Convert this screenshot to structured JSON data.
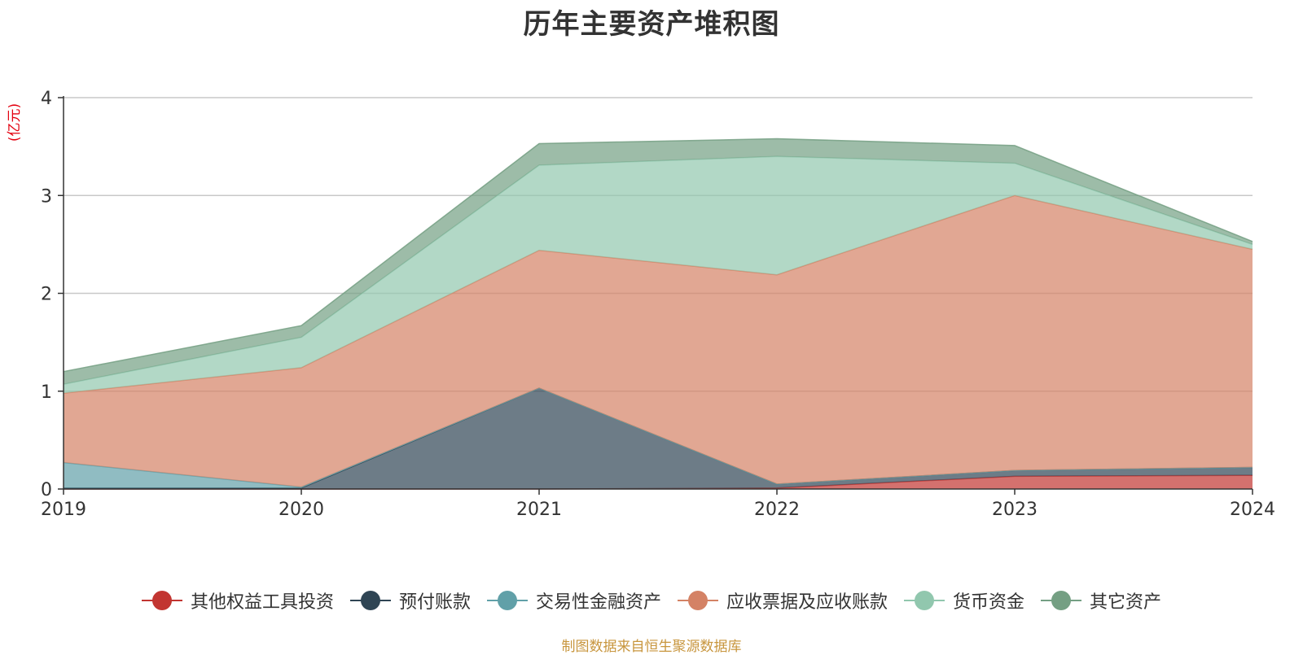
{
  "chart_data": {
    "type": "area",
    "stacked": true,
    "title": "历年主要资产堆积图",
    "ylabel": "(亿元)",
    "x": [
      "2019",
      "2020",
      "2021",
      "2022",
      "2023",
      "2024"
    ],
    "ylim": [
      0,
      4
    ],
    "yticks": [
      "0",
      "1",
      "2",
      "3",
      "4"
    ],
    "grid": true,
    "legend_position": "bottom",
    "series": [
      {
        "name": "其他权益工具投资",
        "color": "#c23531",
        "values": [
          0,
          0,
          0,
          0.01,
          0.13,
          0.14
        ]
      },
      {
        "name": "预付账款",
        "color": "#2f4554",
        "values": [
          0.01,
          0.01,
          1.03,
          0.04,
          0.06,
          0.08
        ]
      },
      {
        "name": "交易性金融资产",
        "color": "#61a0a8",
        "values": [
          0.26,
          0.01,
          0,
          0,
          0,
          0
        ]
      },
      {
        "name": "应收票据及应收账款",
        "color": "#d48265",
        "values": [
          0.71,
          1.22,
          1.41,
          2.14,
          2.81,
          2.23
        ]
      },
      {
        "name": "货币资金",
        "color": "#91c7ae",
        "values": [
          0.09,
          0.31,
          0.87,
          1.21,
          0.33,
          0.05
        ]
      },
      {
        "name": "其它资产",
        "color": "#749f83",
        "values": [
          0.13,
          0.12,
          0.22,
          0.18,
          0.18,
          0.03
        ]
      }
    ]
  },
  "source_note": "制图数据来自恒生聚源数据库"
}
